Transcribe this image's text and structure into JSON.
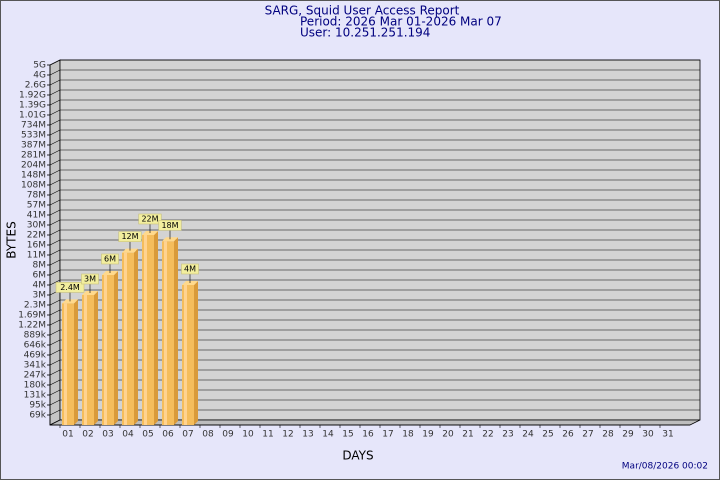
{
  "chart_data": {
    "type": "bar",
    "title": "SARG, Squid User Access Report",
    "subtitles": [
      "Period: 2026 Mar 01-2026 Mar 07",
      "User: 10.251.251.194"
    ],
    "y_label": "BYTES",
    "x_label": "DAYS",
    "timestamp": "Mar/08/2026 00:02",
    "categories": [
      "01",
      "02",
      "03",
      "04",
      "05",
      "06",
      "07",
      "08",
      "09",
      "10",
      "11",
      "12",
      "13",
      "14",
      "15",
      "16",
      "17",
      "18",
      "19",
      "20",
      "21",
      "22",
      "23",
      "24",
      "25",
      "26",
      "27",
      "28",
      "29",
      "30",
      "31"
    ],
    "values": [
      2400000,
      3000000,
      6000000,
      12000000,
      22000000,
      18000000,
      4000000,
      null,
      null,
      null,
      null,
      null,
      null,
      null,
      null,
      null,
      null,
      null,
      null,
      null,
      null,
      null,
      null,
      null,
      null,
      null,
      null,
      null,
      null,
      null,
      null
    ],
    "value_labels": [
      "2.4M",
      "3M",
      "6M",
      "12M",
      "22M",
      "18M",
      "4M",
      null,
      null,
      null,
      null,
      null,
      null,
      null,
      null,
      null,
      null,
      null,
      null,
      null,
      null,
      null,
      null,
      null,
      null,
      null,
      null,
      null,
      null,
      null,
      null
    ],
    "color": "#f5bd5c",
    "ylim": [
      50000,
      5000000000
    ],
    "yticks": [
      {
        "value": 5000000000,
        "label": "5G"
      },
      {
        "value": 4000000000,
        "label": "4G"
      },
      {
        "value": 2600000000,
        "label": "2.6G"
      },
      {
        "value": 1920000000,
        "label": "1.92G"
      },
      {
        "value": 1390000000,
        "label": "1.39G"
      },
      {
        "value": 1010000000,
        "label": "1.01G"
      },
      {
        "value": 734000000,
        "label": "734M"
      },
      {
        "value": 533000000,
        "label": "533M"
      },
      {
        "value": 387000000,
        "label": "387M"
      },
      {
        "value": 281000000,
        "label": "281M"
      },
      {
        "value": 204000000,
        "label": "204M"
      },
      {
        "value": 148000000,
        "label": "148M"
      },
      {
        "value": 108000000,
        "label": "108M"
      },
      {
        "value": 78000000,
        "label": "78M"
      },
      {
        "value": 57000000,
        "label": "57M"
      },
      {
        "value": 41000000,
        "label": "41M"
      },
      {
        "value": 30000000,
        "label": "30M"
      },
      {
        "value": 22000000,
        "label": "22M"
      },
      {
        "value": 16000000,
        "label": "16M"
      },
      {
        "value": 11000000,
        "label": "11M"
      },
      {
        "value": 8000000,
        "label": "8M"
      },
      {
        "value": 6000000,
        "label": "6M"
      },
      {
        "value": 4000000,
        "label": "4M"
      },
      {
        "value": 3000000,
        "label": "3M"
      },
      {
        "value": 2300000,
        "label": "2.3M"
      },
      {
        "value": 1690000,
        "label": "1.69M"
      },
      {
        "value": 1220000,
        "label": "1.22M"
      },
      {
        "value": 889000,
        "label": "889k"
      },
      {
        "value": 646000,
        "label": "646k"
      },
      {
        "value": 469000,
        "label": "469k"
      },
      {
        "value": 341000,
        "label": "341k"
      },
      {
        "value": 247000,
        "label": "247k"
      },
      {
        "value": 180000,
        "label": "180k"
      },
      {
        "value": 131000,
        "label": "131k"
      },
      {
        "value": 95000,
        "label": "95k"
      },
      {
        "value": 69000,
        "label": "69k"
      }
    ],
    "grid": true
  }
}
